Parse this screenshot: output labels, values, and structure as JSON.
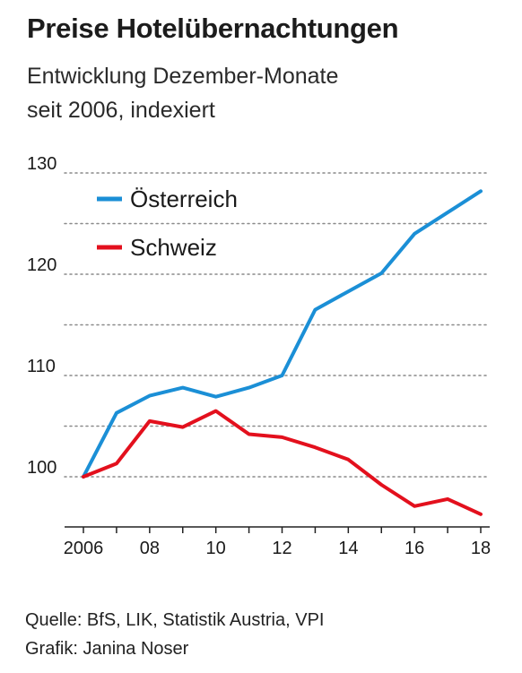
{
  "header": {
    "title": "Preise Hotelübernachtungen",
    "subtitle_line1": "Entwicklung Dezember-Monate",
    "subtitle_line2": "seit 2006, indexiert"
  },
  "footer": {
    "source": "Quelle: BfS, LIK, Statistik Austria, VPI",
    "credit": "Grafik: Janina Noser"
  },
  "chart_data": {
    "type": "line",
    "title": "Preise Hotelübernachtungen",
    "subtitle": "Entwicklung Dezember-Monate seit 2006, indexiert",
    "xlabel": "",
    "ylabel": "",
    "x": [
      2006,
      2007,
      2008,
      2009,
      2010,
      2011,
      2012,
      2013,
      2014,
      2015,
      2016,
      2017,
      2018
    ],
    "xlim": [
      2006,
      2018
    ],
    "ylim": [
      95,
      130
    ],
    "yticks": [
      100,
      110,
      120,
      130
    ],
    "yticks_labeled": [
      "100",
      "110",
      "120",
      "130"
    ],
    "xticks": [
      2006,
      2008,
      2010,
      2012,
      2014,
      2016,
      2018
    ],
    "xtick_labels": [
      "2006",
      "08",
      "10",
      "12",
      "14",
      "16",
      "18"
    ],
    "grid": "horizontal dotted",
    "legend_position": "top-left",
    "series": [
      {
        "name": "Österreich",
        "color": "#1b8fd6",
        "values": [
          100,
          106.3,
          108,
          108.8,
          107.9,
          108.8,
          110,
          116.5,
          118.3,
          120.1,
          124,
          126.1,
          128.2
        ]
      },
      {
        "name": "Schweiz",
        "color": "#e3101d",
        "values": [
          100,
          101.3,
          105.5,
          104.9,
          106.5,
          104.2,
          103.9,
          102.9,
          101.7,
          99.2,
          97.1,
          97.8,
          96.3
        ]
      }
    ]
  }
}
